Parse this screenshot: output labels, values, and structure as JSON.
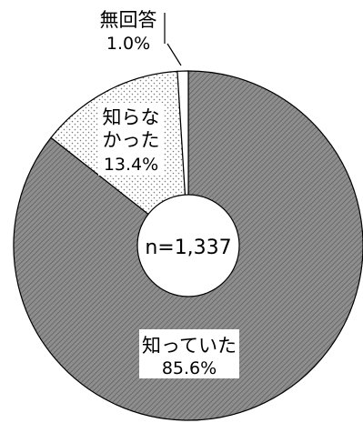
{
  "chart_data": {
    "type": "pie",
    "donut": true,
    "sample_size_label": "n=1,337",
    "slices": [
      {
        "label_line1": "知って",
        "label_line2": "いた",
        "label": "知っていた",
        "value": 85.6,
        "value_label": "85.6%",
        "color": "#8c8c8c",
        "pattern": "diagonal-hatch"
      },
      {
        "label_line1": "知らな",
        "label_line2": "かった",
        "value": 13.4,
        "value_label": "13.4%",
        "color": "#f2f2f2",
        "pattern": "dots"
      },
      {
        "label_line1": "無回答",
        "label_line2": "",
        "value": 1.0,
        "value_label": "1.0%",
        "color": "#ffffff",
        "pattern": "none"
      }
    ]
  }
}
